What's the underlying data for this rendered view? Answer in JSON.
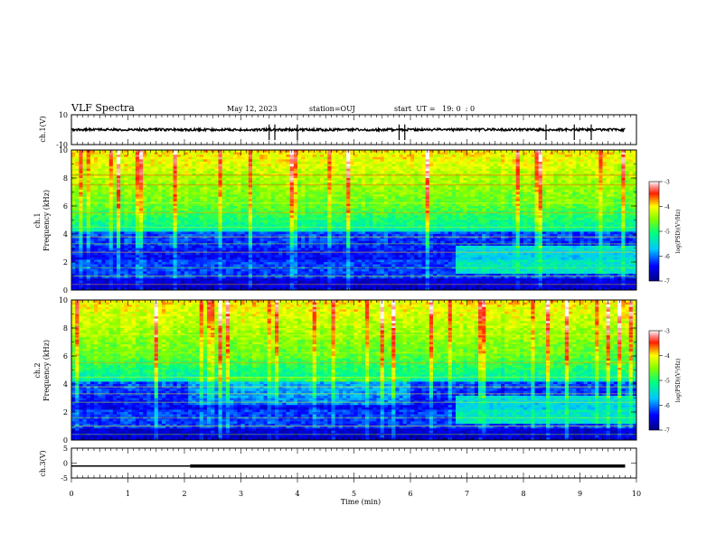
{
  "header": {
    "title": "VLF Spectra",
    "date": "May 12, 2023",
    "station": "station=OUJ",
    "start_ut": "start  UT =   19: 0  : 0"
  },
  "colorbar": {
    "label": "log(PSD)(V²/Hz)",
    "ticks": [
      "-3",
      "-4",
      "-5",
      "-6",
      "-7"
    ]
  },
  "chart_data": [
    {
      "type": "line",
      "name": "ch1-waveform",
      "ylabel": "ch.1(V)",
      "ylim": [
        -10,
        10
      ],
      "yticks": [
        "10",
        "-10"
      ],
      "xlim": [
        0,
        10
      ],
      "baseline": 0,
      "spikes_x": [
        3.5,
        3.6,
        4.0,
        5.8,
        5.9,
        8.4,
        8.9,
        9.2
      ]
    },
    {
      "type": "heatmap",
      "name": "ch1-spectrogram",
      "ylabel_top": "ch.1",
      "ylabel": "Frequency (kHz)",
      "ylim": [
        0,
        10
      ],
      "yticks": [
        "0",
        "2",
        "4",
        "6",
        "8",
        "10"
      ],
      "xlim": [
        0,
        10
      ],
      "clim": [
        -7,
        -3
      ],
      "regime_change_x": 6.8
    },
    {
      "type": "heatmap",
      "name": "ch2-spectrogram",
      "ylabel_top": "ch.2",
      "ylabel": "Frequency (kHz)",
      "ylim": [
        0,
        10
      ],
      "yticks": [
        "0",
        "2",
        "4",
        "6",
        "8",
        "10"
      ],
      "xlim": [
        0,
        10
      ],
      "clim": [
        -7,
        -3
      ],
      "regime_change_x": 6.8
    },
    {
      "type": "line",
      "name": "ch3-level",
      "ylabel": "ch.3(V)",
      "ylim": [
        -5,
        5
      ],
      "yticks": [
        "5",
        "0",
        "-5"
      ],
      "xlim": [
        0,
        10
      ],
      "value": -1,
      "thick_from_x": 2.1
    }
  ],
  "xaxis": {
    "label": "Time (min)",
    "ticks": [
      "0",
      "1",
      "2",
      "3",
      "4",
      "5",
      "6",
      "7",
      "8",
      "9",
      "10"
    ]
  }
}
